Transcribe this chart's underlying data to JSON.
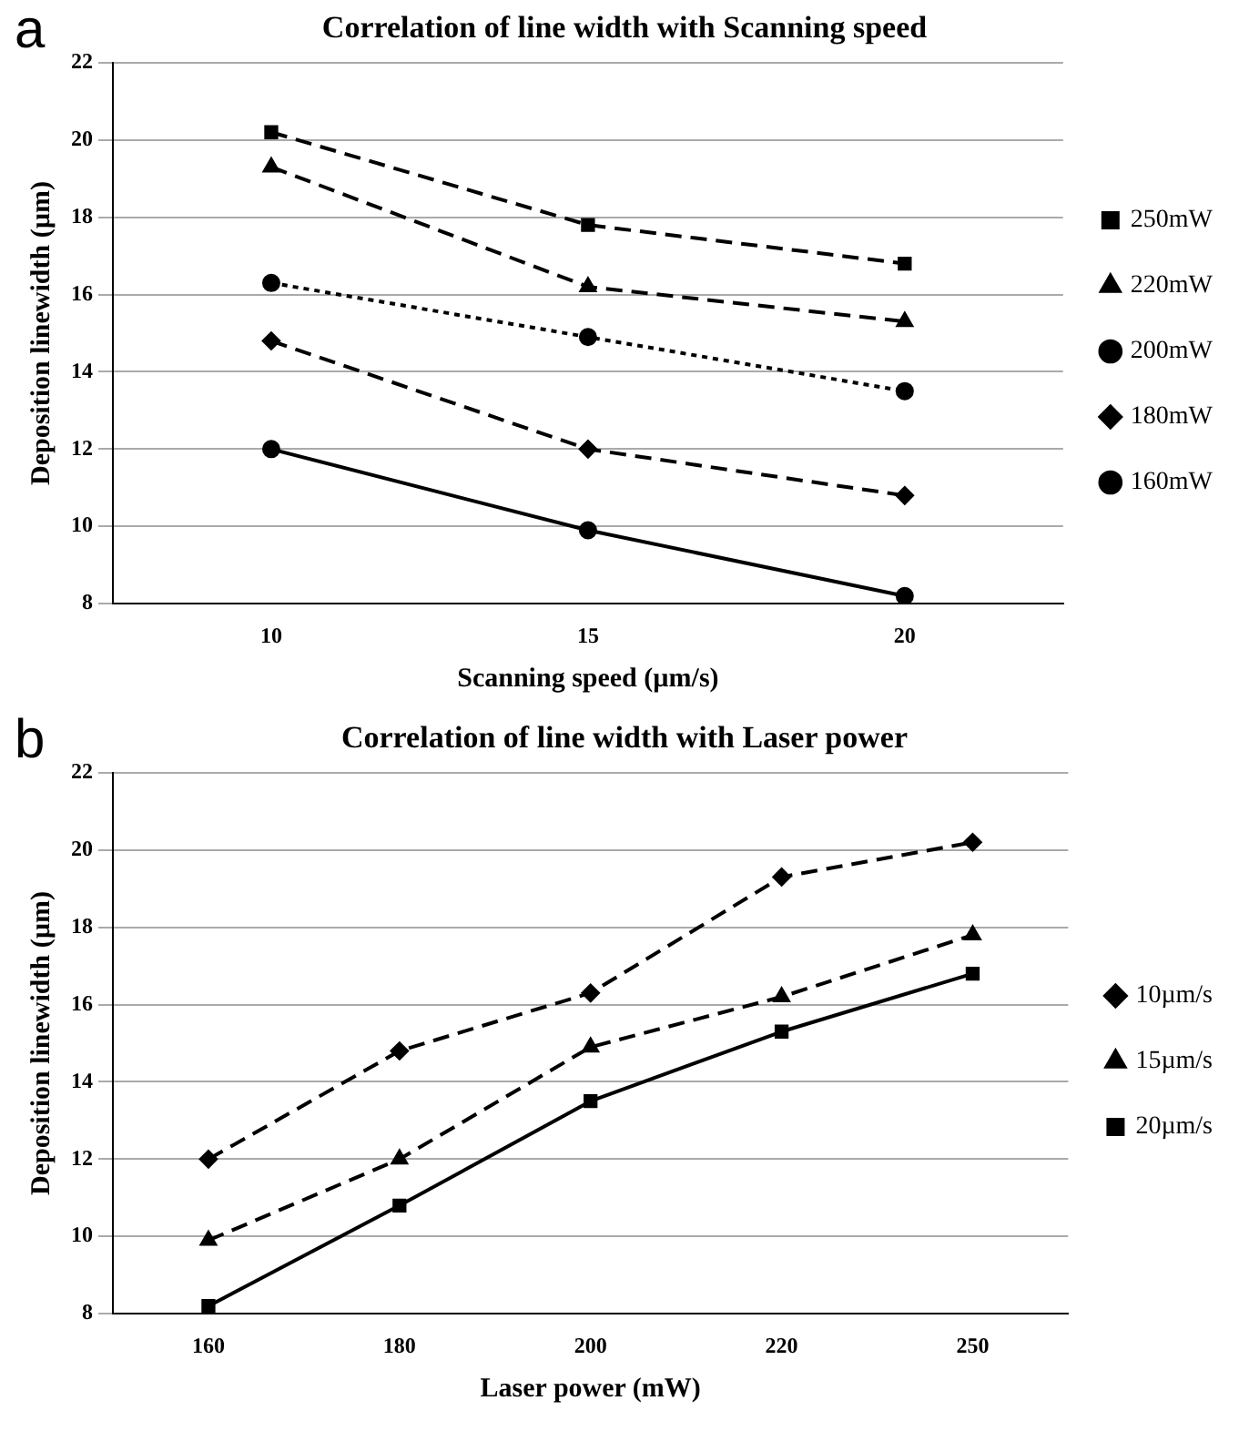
{
  "chart_data": [
    {
      "type": "line",
      "title": "Correlation of line width with Scanning speed",
      "xlabel": "Scanning speed (µm/s)",
      "ylabel": "Deposition linewidth (µm)",
      "annotations": [
        "a"
      ],
      "categories": [
        "10",
        "15",
        "20"
      ],
      "ylim": [
        8,
        22
      ],
      "yticks": [
        8,
        10,
        12,
        14,
        16,
        18,
        20,
        22
      ],
      "grid": "y",
      "legend": "right",
      "series": [
        {
          "name": "250mW",
          "color": "#000000",
          "values": [
            20.2,
            17.8,
            16.8
          ],
          "marker": "square",
          "line_style": "dashed"
        },
        {
          "name": "220mW",
          "color": "#000000",
          "values": [
            19.3,
            16.2,
            15.3
          ],
          "marker": "triangle",
          "line_style": "dashed"
        },
        {
          "name": "200mW",
          "color": "#000000",
          "values": [
            16.3,
            14.9,
            13.5
          ],
          "marker": "circle",
          "line_style": "dotted"
        },
        {
          "name": "180mW",
          "color": "#000000",
          "values": [
            14.8,
            12.0,
            10.8
          ],
          "marker": "diamond",
          "line_style": "dashed"
        },
        {
          "name": "160mW",
          "color": "#000000",
          "values": [
            12.0,
            9.9,
            8.2
          ],
          "marker": "circle",
          "line_style": "solid"
        }
      ]
    },
    {
      "type": "line",
      "title": "Correlation of line width with Laser power",
      "xlabel": "Laser power (mW)",
      "ylabel": "Deposition linewidth (µm)",
      "annotations": [
        "b"
      ],
      "categories": [
        "160",
        "180",
        "200",
        "220",
        "250"
      ],
      "ylim": [
        8,
        22
      ],
      "yticks": [
        8,
        10,
        12,
        14,
        16,
        18,
        20,
        22
      ],
      "grid": "y",
      "legend": "right",
      "series": [
        {
          "name": "10µm/s",
          "color": "#000000",
          "values": [
            12.0,
            14.8,
            16.3,
            19.3,
            20.2
          ],
          "marker": "diamond",
          "line_style": "dashed"
        },
        {
          "name": "15µm/s",
          "color": "#000000",
          "values": [
            9.9,
            12.0,
            14.9,
            16.2,
            17.8
          ],
          "marker": "triangle",
          "line_style": "dashed"
        },
        {
          "name": "20µm/s",
          "color": "#000000",
          "values": [
            8.2,
            10.8,
            13.5,
            15.3,
            16.8
          ],
          "marker": "square",
          "line_style": "solid"
        }
      ]
    }
  ]
}
